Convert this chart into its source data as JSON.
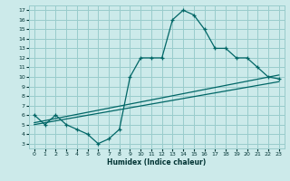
{
  "xlabel": "Humidex (Indice chaleur)",
  "bg_color": "#cceaea",
  "grid_color": "#99cccc",
  "line_color": "#006666",
  "xlim": [
    -0.5,
    23.5
  ],
  "ylim": [
    2.5,
    17.5
  ],
  "xticks": [
    0,
    1,
    2,
    3,
    4,
    5,
    6,
    7,
    8,
    9,
    10,
    11,
    12,
    13,
    14,
    15,
    16,
    17,
    18,
    19,
    20,
    21,
    22,
    23
  ],
  "yticks": [
    3,
    4,
    5,
    6,
    7,
    8,
    9,
    10,
    11,
    12,
    13,
    14,
    15,
    16,
    17
  ],
  "line1_x": [
    0,
    1,
    2,
    3,
    4,
    5,
    6,
    7,
    8,
    9,
    10,
    11,
    12,
    13,
    14,
    15,
    16,
    17,
    18,
    19,
    20,
    21,
    22,
    23
  ],
  "line1_y": [
    6.0,
    5.0,
    6.0,
    5.0,
    4.5,
    4.0,
    3.0,
    3.5,
    4.5,
    10.0,
    12.0,
    12.0,
    12.0,
    16.0,
    17.0,
    16.5,
    15.0,
    13.0,
    13.0,
    12.0,
    12.0,
    11.0,
    10.0,
    9.8
  ],
  "line2_x": [
    0,
    23
  ],
  "line2_y": [
    5.0,
    9.5
  ],
  "line3_x": [
    0,
    23
  ],
  "line3_y": [
    5.2,
    10.2
  ]
}
